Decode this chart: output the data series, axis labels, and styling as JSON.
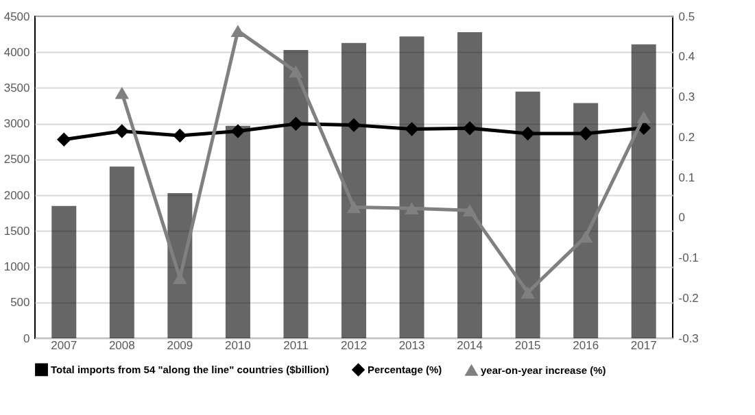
{
  "chart_data": {
    "type": "bar",
    "categories": [
      "2007",
      "2008",
      "2009",
      "2010",
      "2011",
      "2012",
      "2013",
      "2014",
      "2015",
      "2016",
      "2017"
    ],
    "series": [
      {
        "name": "Total imports from 54 \"along the line\" countries ($billion)",
        "color": "#000000",
        "values": [
          1850,
          2400,
          2030,
          2970,
          4030,
          4130,
          4220,
          4280,
          3450,
          3290,
          4110
        ]
      },
      {
        "name": "Percentage (%)",
        "type": "line",
        "axis": "y2",
        "color": "#000000",
        "marker": "diamond",
        "values": [
          0.194,
          0.215,
          0.204,
          0.215,
          0.233,
          0.23,
          0.22,
          0.222,
          0.209,
          0.209,
          0.223
        ]
      },
      {
        "name": "year-on-year increase (%)",
        "type": "line",
        "axis": "y2",
        "color": "#808080",
        "marker": "triangle",
        "values": [
          null,
          0.31,
          -0.15,
          0.464,
          0.363,
          0.026,
          0.023,
          0.018,
          -0.186,
          -0.047,
          0.25
        ]
      }
    ],
    "ylim": [
      0,
      4500
    ],
    "yticks": [
      0,
      500,
      1000,
      1500,
      2000,
      2500,
      3000,
      3500,
      4000,
      4500
    ],
    "y2lim": [
      -0.3,
      0.5
    ],
    "y2ticks": [
      -0.3,
      -0.2,
      -0.1,
      0,
      0.1,
      0.2,
      0.3,
      0.4,
      0.5
    ],
    "grid": "y",
    "legend": "bottom"
  }
}
